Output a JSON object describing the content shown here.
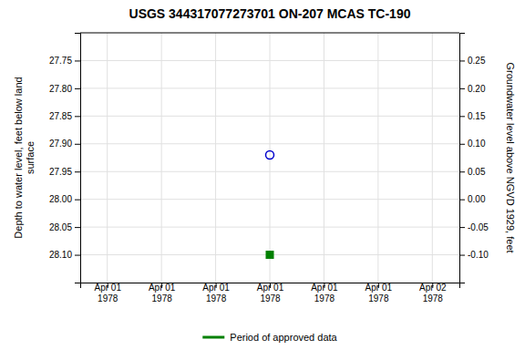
{
  "chart_data": {
    "type": "scatter",
    "title": "USGS 344317077273701 ON-207 MCAS TC-190",
    "ylabel": "Depth to water level, feet below land\nsurface",
    "y2label": "Groundwater level above NGVD 1929, feet",
    "categories": [
      "Apr 01\n1978",
      "Apr 01\n1978",
      "Apr 01\n1978",
      "Apr 01\n1978",
      "Apr 01\n1978",
      "Apr 01\n1978",
      "Apr 02\n1978"
    ],
    "series": [
      {
        "color": "#0000cc",
        "marker": "open-circle",
        "values": [
          null,
          null,
          null,
          27.92,
          null,
          null,
          null
        ]
      },
      {
        "name": "Period of approved data",
        "color": "#008000",
        "marker": "square",
        "values": [
          null,
          null,
          null,
          28.1,
          null,
          null,
          null
        ]
      }
    ],
    "ylim": [
      28.15,
      27.7
    ],
    "yticks": [
      27.75,
      {
        "value": 27.8,
        "label": "27.80"
      },
      27.85,
      {
        "value": 27.9,
        "label": "27.90"
      },
      27.95,
      {
        "value": 28,
        "label": "28.00"
      },
      28.05,
      {
        "value": 28.1,
        "label": "28.10"
      }
    ],
    "y2lim": [
      -0.15,
      0.3
    ],
    "y2ticks": [
      0.25,
      {
        "value": 0.2,
        "label": "0.20"
      },
      0.15,
      {
        "value": 0.1,
        "label": "0.10"
      },
      0.05,
      {
        "value": 0,
        "label": "0.00"
      },
      -0.05,
      {
        "value": -0.1,
        "label": "-0.10"
      }
    ],
    "grid": true,
    "legend": "bottom"
  }
}
